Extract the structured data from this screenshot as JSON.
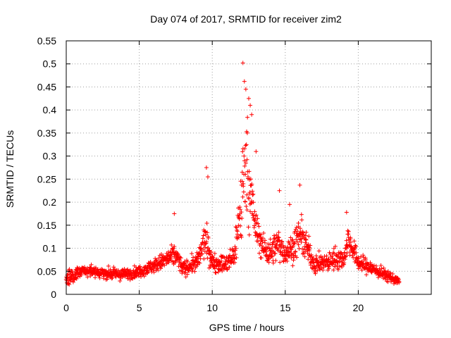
{
  "chart_data": {
    "type": "scatter",
    "title": "Day 074 of 2017, SRMTID for receiver zim2",
    "xlabel": "GPS time / hours",
    "ylabel": "SRMTID / TECUs",
    "xlim": [
      0,
      25
    ],
    "ylim": [
      0,
      0.55
    ],
    "x_ticks": [
      0,
      5,
      10,
      15,
      20
    ],
    "x_tick_labels": [
      "0",
      "5",
      "10",
      "15",
      "20"
    ],
    "y_ticks": [
      0,
      0.05,
      0.1,
      0.15,
      0.2,
      0.25,
      0.3,
      0.35,
      0.4,
      0.45,
      0.5,
      0.55
    ],
    "y_tick_labels": [
      "0",
      "0.05",
      "0.1",
      "0.15",
      "0.2",
      "0.25",
      "0.3",
      "0.35",
      "0.4",
      "0.45",
      "0.5",
      "0.55"
    ],
    "grid": true,
    "marker": "+",
    "color": "#ff0000",
    "data_span_hours": [
      0,
      22.8
    ],
    "envelope": [
      [
        0.0,
        0.035,
        0.02
      ],
      [
        1.0,
        0.05,
        0.012
      ],
      [
        2.0,
        0.048,
        0.012
      ],
      [
        3.0,
        0.045,
        0.012
      ],
      [
        4.0,
        0.043,
        0.012
      ],
      [
        5.0,
        0.05,
        0.012
      ],
      [
        6.0,
        0.062,
        0.015
      ],
      [
        7.0,
        0.078,
        0.02
      ],
      [
        7.5,
        0.085,
        0.025
      ],
      [
        8.0,
        0.055,
        0.015
      ],
      [
        9.0,
        0.07,
        0.02
      ],
      [
        9.5,
        0.12,
        0.04
      ],
      [
        10.0,
        0.07,
        0.02
      ],
      [
        11.0,
        0.065,
        0.02
      ],
      [
        11.5,
        0.085,
        0.03
      ],
      [
        12.0,
        0.2,
        0.1
      ],
      [
        12.3,
        0.3,
        0.12
      ],
      [
        12.6,
        0.22,
        0.08
      ],
      [
        13.0,
        0.14,
        0.04
      ],
      [
        13.5,
        0.1,
        0.03
      ],
      [
        14.0,
        0.09,
        0.03
      ],
      [
        14.5,
        0.11,
        0.035
      ],
      [
        15.0,
        0.09,
        0.025
      ],
      [
        15.5,
        0.1,
        0.03
      ],
      [
        16.0,
        0.13,
        0.04
      ],
      [
        16.5,
        0.1,
        0.03
      ],
      [
        17.0,
        0.065,
        0.02
      ],
      [
        18.0,
        0.07,
        0.02
      ],
      [
        18.5,
        0.08,
        0.025
      ],
      [
        19.0,
        0.075,
        0.02
      ],
      [
        19.3,
        0.12,
        0.03
      ],
      [
        20.0,
        0.07,
        0.02
      ],
      [
        21.0,
        0.055,
        0.015
      ],
      [
        22.0,
        0.04,
        0.012
      ],
      [
        22.8,
        0.028,
        0.008
      ]
    ],
    "peaks": [
      {
        "x": 7.4,
        "y": 0.175
      },
      {
        "x": 9.6,
        "y": 0.275
      },
      {
        "x": 9.7,
        "y": 0.255
      },
      {
        "x": 12.1,
        "y": 0.502
      },
      {
        "x": 12.2,
        "y": 0.462
      },
      {
        "x": 12.3,
        "y": 0.445
      },
      {
        "x": 12.5,
        "y": 0.425
      },
      {
        "x": 12.6,
        "y": 0.41
      },
      {
        "x": 12.7,
        "y": 0.39
      },
      {
        "x": 12.4,
        "y": 0.35
      },
      {
        "x": 13.0,
        "y": 0.31
      },
      {
        "x": 14.6,
        "y": 0.225
      },
      {
        "x": 16.0,
        "y": 0.237
      },
      {
        "x": 15.3,
        "y": 0.195
      },
      {
        "x": 19.2,
        "y": 0.178
      }
    ]
  }
}
